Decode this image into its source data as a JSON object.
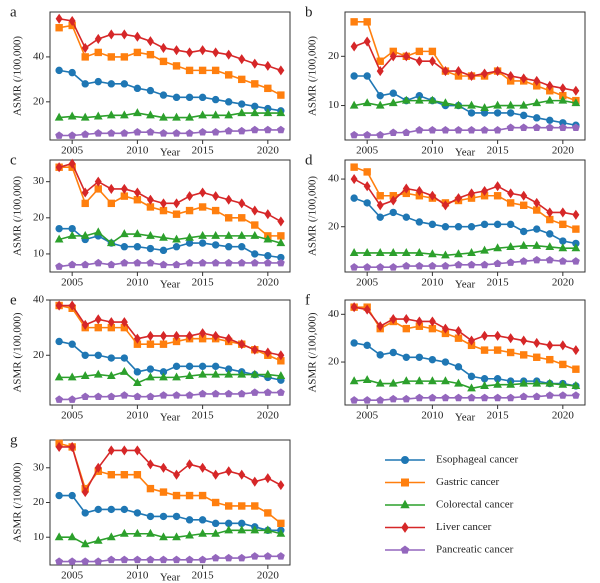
{
  "chart_data": [
    {
      "type": "line",
      "title": "a",
      "xlabel": "Year",
      "ylabel": "ASMR  (/100,000)",
      "x": [
        2004,
        2005,
        2006,
        2007,
        2008,
        2009,
        2010,
        2011,
        2012,
        2013,
        2014,
        2015,
        2016,
        2017,
        2018,
        2019,
        2020,
        2021
      ],
      "xlim": [
        2003.3,
        2021.7
      ],
      "xticks": [
        2005,
        2010,
        2015,
        2020
      ],
      "ylim": [
        3,
        60
      ],
      "yticks": [
        20,
        40
      ],
      "series": [
        {
          "name": "Esophageal cancer",
          "color": "#1f77b4",
          "marker": "circle",
          "values": [
            34,
            33,
            28,
            29,
            28,
            28,
            26,
            25,
            23,
            22,
            22,
            22,
            21,
            20,
            19,
            18,
            17,
            16
          ]
        },
        {
          "name": "Gastric cancer",
          "color": "#ff7f0e",
          "marker": "square",
          "values": [
            53,
            54,
            40,
            42,
            40,
            40,
            42,
            41,
            38,
            36,
            34,
            34,
            34,
            32,
            30,
            28,
            26,
            23
          ]
        },
        {
          "name": "Colorectal cancer",
          "color": "#2ca02c",
          "marker": "triangle",
          "values": [
            13,
            13.5,
            13,
            13.5,
            14,
            14,
            15,
            14,
            13,
            13,
            13,
            14,
            14,
            14,
            15,
            15,
            15,
            15
          ]
        },
        {
          "name": "Liver cancer",
          "color": "#d62728",
          "marker": "diamond",
          "values": [
            57,
            56,
            44,
            48,
            50,
            50,
            49,
            47,
            44,
            43,
            42,
            43,
            42,
            41,
            39,
            37,
            36,
            34
          ]
        },
        {
          "name": "Pancreatic cancer",
          "color": "#9467bd",
          "marker": "pentagon",
          "values": [
            5,
            5,
            5.5,
            6,
            6,
            6,
            6.5,
            6.5,
            6,
            6,
            6,
            6.5,
            6.5,
            7,
            7,
            7.5,
            7.5,
            7.5
          ]
        }
      ]
    },
    {
      "type": "line",
      "title": "b",
      "xlabel": "Year",
      "ylabel": "ASMR  (/100,000)",
      "x": [
        2004,
        2005,
        2006,
        2007,
        2008,
        2009,
        2010,
        2011,
        2012,
        2013,
        2014,
        2015,
        2016,
        2017,
        2018,
        2019,
        2020,
        2021
      ],
      "xlim": [
        2003.3,
        2021.7
      ],
      "xticks": [
        2005,
        2010,
        2015,
        2020
      ],
      "ylim": [
        3,
        29
      ],
      "yticks": [
        10,
        20
      ],
      "series": [
        {
          "values": [
            16,
            16,
            12,
            12.5,
            11,
            12,
            11,
            10,
            10,
            8.5,
            8.5,
            8.5,
            8.5,
            8,
            7.5,
            7,
            6.5,
            6
          ]
        },
        {
          "values": [
            27,
            27,
            19,
            21,
            20,
            21,
            21,
            17,
            16,
            16,
            16,
            17,
            15,
            15,
            14,
            13,
            12,
            11
          ]
        },
        {
          "values": [
            10,
            10.5,
            10,
            10.5,
            11,
            11,
            11,
            10.5,
            10,
            10,
            9.5,
            10,
            10,
            10,
            10.5,
            11,
            11,
            10.5
          ]
        },
        {
          "values": [
            22,
            23,
            17,
            20,
            20,
            19,
            19,
            17,
            17,
            16,
            16.5,
            17,
            16,
            15.5,
            15,
            14,
            13.5,
            13
          ]
        },
        {
          "values": [
            4,
            4,
            4,
            4.5,
            4.5,
            5,
            5,
            5,
            5,
            5,
            5,
            5,
            5.5,
            5.5,
            5.5,
            5.5,
            5.5,
            5.5
          ]
        }
      ]
    },
    {
      "type": "line",
      "title": "c",
      "xlabel": "Year",
      "ylabel": "ASMR  (/100,000)",
      "x": [
        2004,
        2005,
        2006,
        2007,
        2008,
        2009,
        2010,
        2011,
        2012,
        2013,
        2014,
        2015,
        2016,
        2017,
        2018,
        2019,
        2020,
        2021
      ],
      "xlim": [
        2003.3,
        2021.7
      ],
      "xticks": [
        2005,
        2010,
        2015,
        2020
      ],
      "ylim": [
        5,
        36
      ],
      "yticks": [
        10,
        20,
        30
      ],
      "series": [
        {
          "values": [
            17,
            17,
            14,
            15,
            13,
            12,
            12,
            11.5,
            11,
            12,
            13,
            13,
            12.5,
            12,
            12,
            10,
            9.5,
            9
          ]
        },
        {
          "values": [
            34,
            34,
            24,
            28,
            24,
            26,
            25,
            23,
            22,
            21,
            22,
            23,
            22,
            20,
            20,
            18,
            15,
            15
          ]
        },
        {
          "values": [
            14,
            15,
            15,
            16,
            13,
            15.5,
            15.5,
            15,
            14.5,
            14,
            14.5,
            15,
            15,
            15,
            15,
            15,
            14,
            13
          ]
        },
        {
          "values": [
            34,
            35,
            27,
            30,
            28,
            28,
            27,
            25,
            24,
            24,
            26,
            27,
            26,
            25,
            24,
            22,
            21,
            19
          ]
        },
        {
          "values": [
            6.5,
            7,
            7,
            7.5,
            7,
            7.5,
            7.5,
            7.5,
            7,
            7,
            7.5,
            7.5,
            7.5,
            7.5,
            7.5,
            7.5,
            7.5,
            7.5
          ]
        }
      ]
    },
    {
      "type": "line",
      "title": "d",
      "xlabel": "Year",
      "ylabel": "ASMR  (/100,000)",
      "x": [
        2004,
        2005,
        2006,
        2007,
        2008,
        2009,
        2010,
        2011,
        2012,
        2013,
        2014,
        2015,
        2016,
        2017,
        2018,
        2019,
        2020,
        2021
      ],
      "xlim": [
        2003.3,
        2021.7
      ],
      "xticks": [
        2005,
        2010,
        2015,
        2020
      ],
      "ylim": [
        1,
        48
      ],
      "yticks": [
        20,
        40
      ],
      "series": [
        {
          "values": [
            32,
            30,
            24,
            26,
            24,
            22,
            21,
            20,
            20,
            20,
            21,
            21,
            21,
            18,
            19,
            17,
            14,
            13
          ]
        },
        {
          "values": [
            45,
            43,
            33,
            33,
            34,
            33,
            32,
            30,
            31,
            32,
            33,
            33,
            30,
            29,
            27,
            23,
            21,
            19
          ]
        },
        {
          "values": [
            9,
            9,
            9,
            9,
            9,
            9,
            8.5,
            8,
            8.5,
            9,
            10,
            11,
            11.5,
            12,
            12,
            11.5,
            11,
            11
          ]
        },
        {
          "values": [
            40,
            37,
            29,
            31,
            36,
            35,
            33,
            29,
            32,
            34,
            35,
            37,
            34,
            33,
            30,
            26,
            26,
            25
          ]
        },
        {
          "values": [
            3,
            3,
            3,
            3,
            3.5,
            3.5,
            3.5,
            3.5,
            4,
            4,
            4,
            4.5,
            5,
            5.5,
            6,
            6,
            5.5,
            5.5
          ]
        }
      ]
    },
    {
      "type": "line",
      "title": "e",
      "xlabel": "Year",
      "ylabel": "ASMR  (/100,000)",
      "x": [
        2004,
        2005,
        2006,
        2007,
        2008,
        2009,
        2010,
        2011,
        2012,
        2013,
        2014,
        2015,
        2016,
        2017,
        2018,
        2019,
        2020,
        2021
      ],
      "xlim": [
        2003.3,
        2021.7
      ],
      "xticks": [
        2005,
        2010,
        2015,
        2020
      ],
      "ylim": [
        2,
        40
      ],
      "yticks": [
        20,
        40
      ],
      "series": [
        {
          "values": [
            25,
            24,
            20,
            20,
            19,
            19,
            14,
            15,
            14,
            16,
            16,
            16,
            16,
            15,
            14,
            13,
            12,
            11
          ]
        },
        {
          "values": [
            38,
            37,
            30,
            30,
            30,
            30,
            24,
            24,
            24,
            25,
            26,
            26,
            26,
            25,
            24,
            22,
            20,
            18
          ]
        },
        {
          "values": [
            12,
            12,
            12.5,
            13,
            12.5,
            14,
            10,
            12,
            12,
            12,
            12.5,
            13,
            13,
            13,
            13,
            13,
            13,
            12.5
          ]
        },
        {
          "values": [
            38,
            38,
            31,
            33,
            32,
            32,
            26,
            27,
            27,
            27,
            27,
            28,
            27,
            26,
            24,
            22,
            21,
            20
          ]
        },
        {
          "values": [
            4,
            4,
            5,
            5,
            5,
            5.5,
            5,
            5,
            5.5,
            5.5,
            5.5,
            6,
            6,
            6,
            6,
            6.5,
            6.5,
            6.5
          ]
        }
      ]
    },
    {
      "type": "line",
      "title": "f",
      "xlabel": "Year",
      "ylabel": "ASMR  (/100,000)",
      "x": [
        2004,
        2005,
        2006,
        2007,
        2008,
        2009,
        2010,
        2011,
        2012,
        2013,
        2014,
        2015,
        2016,
        2017,
        2018,
        2019,
        2020,
        2021
      ],
      "xlim": [
        2003.3,
        2021.7
      ],
      "xticks": [
        2005,
        2010,
        2015,
        2020
      ],
      "ylim": [
        2,
        46
      ],
      "yticks": [
        20,
        40
      ],
      "series": [
        {
          "values": [
            28,
            27,
            23,
            24,
            22,
            22,
            21,
            20,
            18,
            14,
            13,
            13,
            12,
            12,
            12,
            11,
            11,
            10
          ]
        },
        {
          "values": [
            43,
            43,
            34,
            37,
            34,
            35,
            34,
            32,
            30,
            27,
            25,
            25,
            24,
            23,
            22,
            21,
            19,
            17
          ]
        },
        {
          "values": [
            12,
            12.5,
            11,
            11,
            12,
            12,
            12,
            12,
            11,
            9,
            10,
            10.5,
            10.5,
            11,
            11,
            11,
            10.5,
            10
          ]
        },
        {
          "values": [
            43,
            42,
            35,
            38,
            38,
            37,
            37,
            34,
            33,
            29,
            31,
            31,
            30,
            29,
            28,
            27,
            27,
            25
          ]
        },
        {
          "values": [
            4,
            4,
            4,
            4.5,
            4.5,
            5,
            5,
            5,
            5,
            5,
            5,
            5,
            5,
            5.5,
            5.5,
            6,
            6,
            6
          ]
        }
      ]
    },
    {
      "type": "line",
      "title": "g",
      "xlabel": "Year",
      "ylabel": "ASMR  (/100,000)",
      "x": [
        2004,
        2005,
        2006,
        2007,
        2008,
        2009,
        2010,
        2011,
        2012,
        2013,
        2014,
        2015,
        2016,
        2017,
        2018,
        2019,
        2020,
        2021
      ],
      "xlim": [
        2003.3,
        2021.7
      ],
      "xticks": [
        2005,
        2010,
        2015,
        2020
      ],
      "ylim": [
        2,
        38
      ],
      "yticks": [
        10,
        20,
        30
      ],
      "series": [
        {
          "values": [
            22,
            22,
            17,
            18,
            18,
            18,
            17,
            16,
            16,
            16,
            15,
            15,
            14,
            14,
            14,
            13,
            12,
            12
          ]
        },
        {
          "values": [
            37,
            36,
            24,
            29,
            28,
            28,
            28,
            24,
            23,
            22,
            22,
            22,
            20,
            19,
            19,
            19,
            17,
            14
          ]
        },
        {
          "values": [
            10,
            10,
            8,
            9,
            10,
            11,
            11,
            11,
            10,
            10,
            10.5,
            11,
            11,
            12,
            12,
            12,
            12,
            11
          ]
        },
        {
          "values": [
            36,
            36,
            23,
            30,
            35,
            35,
            35,
            31,
            30,
            28,
            31,
            30,
            28,
            29,
            28,
            26,
            27,
            25
          ]
        },
        {
          "values": [
            3,
            3,
            3,
            3,
            3.5,
            3.5,
            3.5,
            3.5,
            3.5,
            3.5,
            3.5,
            3.5,
            4,
            4,
            4,
            4.5,
            4.5,
            4.5
          ]
        }
      ]
    }
  ]
}
